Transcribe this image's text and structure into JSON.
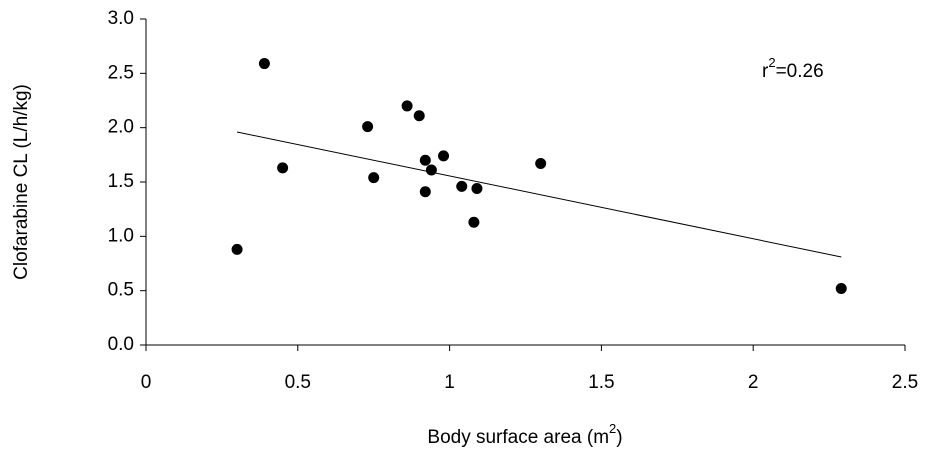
{
  "chart_data": {
    "type": "scatter",
    "ylabel": "Clofarabine CL (L/h/kg)",
    "xlabel": [
      "Body surface area (m",
      "2",
      ")"
    ],
    "annotation": [
      "r",
      "2",
      "=0.26"
    ],
    "color": "#000000",
    "x": [
      0.3,
      0.39,
      0.45,
      0.73,
      0.75,
      0.86,
      0.9,
      0.92,
      0.92,
      0.94,
      0.98,
      1.04,
      1.09,
      1.08,
      1.3,
      2.29
    ],
    "values": [
      0.88,
      2.59,
      1.63,
      2.01,
      1.54,
      2.2,
      2.11,
      1.7,
      1.41,
      1.61,
      1.74,
      1.46,
      1.44,
      1.13,
      1.67,
      0.52
    ],
    "trend_line": {
      "x": [
        0.3,
        2.29
      ],
      "y": [
        1.96,
        0.81
      ]
    },
    "xlim": [
      0,
      2.5
    ],
    "ylim": [
      0,
      3
    ],
    "xticks": [
      0,
      0.5,
      1,
      1.5,
      2,
      2.5
    ],
    "yticks": [
      {
        "value": 0,
        "label": "0.0"
      },
      {
        "value": 0.5,
        "label": "0.5"
      },
      {
        "value": 1,
        "label": "1.0"
      },
      {
        "value": 1.5,
        "label": "1.5"
      },
      {
        "value": 2,
        "label": "2.0"
      },
      {
        "value": 2.5,
        "label": "2.5"
      },
      {
        "value": 3,
        "label": "3.0"
      }
    ]
  }
}
